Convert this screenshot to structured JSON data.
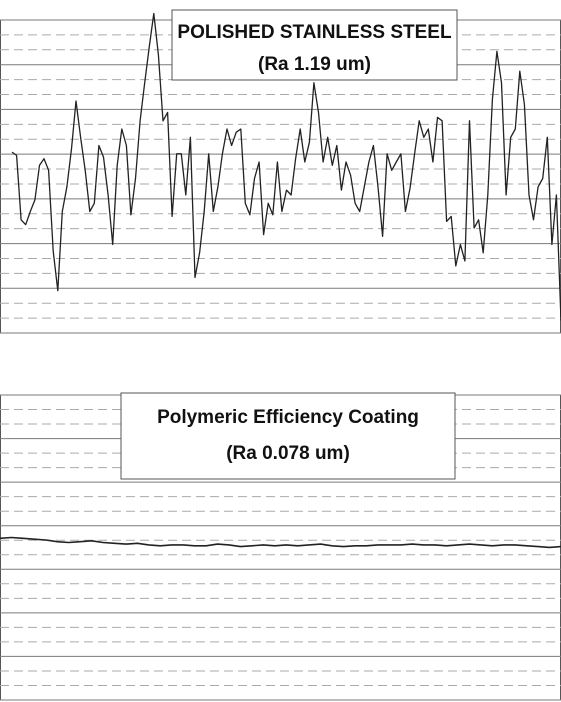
{
  "chart_data": [
    {
      "type": "line",
      "title": "POLISHED STAINLESS STEEL",
      "subtitle": "(Ra 1.19 um)",
      "xlabel": "",
      "ylabel": "",
      "grid": true,
      "ylim": [
        -10,
        10
      ],
      "series": [
        {
          "values": [
            0.6,
            0.4,
            -3.5,
            -3.8,
            -3.0,
            -2.3,
            -0.2,
            0.2,
            -0.5,
            -5.4,
            -7.8,
            -3.0,
            -1.5,
            0.8,
            3.7,
            1.5,
            -0.5,
            -3.0,
            -2.5,
            1.0,
            0.3,
            -2.0,
            -5.0,
            -0.2,
            2.0,
            1.0,
            -3.2,
            -1.0,
            2.5,
            4.8,
            7.0,
            9.0,
            6.5,
            2.5,
            3.0,
            -3.3,
            0.5,
            0.5,
            -2.0,
            1.5,
            -7.0,
            -5.5,
            -3.0,
            0.5,
            -3.0,
            -1.5,
            0.5,
            2.0,
            1.0,
            1.8,
            2.0,
            -2.5,
            -3.2,
            -1.0,
            0.0,
            -4.4,
            -2.5,
            -3.2,
            0.0,
            -3.0,
            -1.7,
            -2.0,
            0.2,
            2.0,
            0.0,
            1.2,
            4.8,
            3.0,
            0.0,
            1.5,
            -0.2,
            1.0,
            -1.7,
            0.0,
            -0.8,
            -2.5,
            -3.0,
            -1.5,
            0.0,
            1.0,
            -1.5,
            -4.5,
            0.5,
            -0.5,
            0.0,
            0.5,
            -3.0,
            -1.6,
            0.5,
            2.5,
            1.5,
            2.0,
            0.0,
            2.7,
            2.5,
            -3.6,
            -3.3,
            -6.3,
            -5.0,
            -6.0,
            2.5,
            -4.0,
            -3.5,
            -5.5,
            -2.0,
            3.8,
            6.7,
            4.8,
            -2.0,
            1.5,
            2.0,
            5.5,
            3.5,
            -2.0,
            -3.5,
            -1.5,
            -1.0,
            1.5,
            -5.0,
            -2.0,
            -9.6
          ]
        }
      ]
    },
    {
      "type": "line",
      "title": "Polymeric Efficiency Coating",
      "subtitle": "(Ra 0.078 um)",
      "xlabel": "",
      "ylabel": "",
      "grid": true,
      "ylim": [
        -10,
        10
      ],
      "series": [
        {
          "values": [
            0.1,
            0.15,
            0.1,
            0.05,
            0.0,
            -0.1,
            -0.15,
            -0.1,
            -0.05,
            -0.15,
            -0.2,
            -0.25,
            -0.2,
            -0.3,
            -0.35,
            -0.3,
            -0.3,
            -0.35,
            -0.35,
            -0.25,
            -0.3,
            -0.4,
            -0.35,
            -0.3,
            -0.35,
            -0.3,
            -0.35,
            -0.3,
            -0.25,
            -0.35,
            -0.4,
            -0.35,
            -0.35,
            -0.3,
            -0.3,
            -0.3,
            -0.25,
            -0.3,
            -0.3,
            -0.35,
            -0.3,
            -0.25,
            -0.3,
            -0.35,
            -0.3,
            -0.3,
            -0.35,
            -0.4,
            -0.45,
            -0.4
          ]
        }
      ]
    }
  ],
  "style": {
    "line_color": "#222222",
    "grid_solid": "#7a7a7a",
    "grid_dashed": "#aaaaaa",
    "frame": "#555555",
    "title_box_fill": "#ffffff",
    "title_box_stroke": "#555555"
  }
}
